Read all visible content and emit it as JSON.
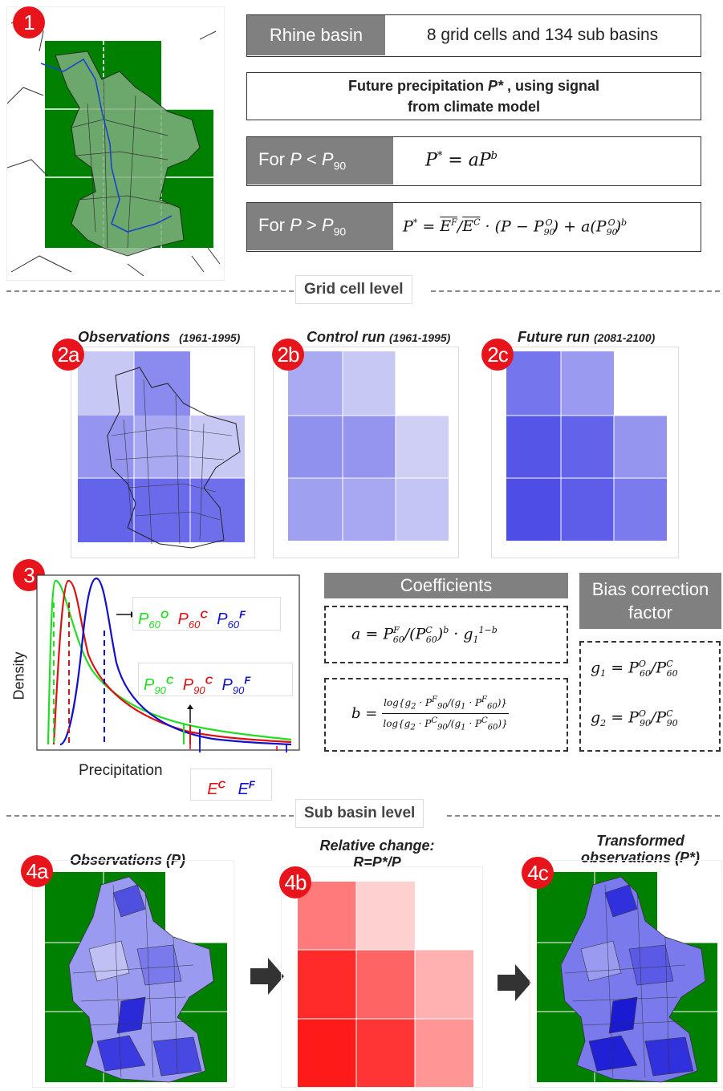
{
  "badges": {
    "b1": "1",
    "b2a": "2a",
    "b2b": "2b",
    "b2c": "2c",
    "b3": "3",
    "b4a": "4a",
    "b4b": "4b",
    "b4c": "4c"
  },
  "header": {
    "rhine_label": "Rhine basin",
    "rhine_desc": "8 grid cells and 134 sub basins",
    "future_line1": "Future  precipitation P* , using signal",
    "future_line2": "from climate model",
    "for_lt": "For P < P90",
    "for_gt": "For P > P90",
    "eq_lt": "P* = aP^b",
    "eq_gt": "P* = E^F/E^C · (P − P^O_90) + a(P^O_90)^b"
  },
  "levels": {
    "grid": "Grid cell level",
    "sub": "Sub basin level"
  },
  "panels2": {
    "obs_title": "Observations",
    "obs_years": "(1961-1995)",
    "ctrl_title": "Control run",
    "ctrl_years": "(1961-1995)",
    "fut_title": "Future run",
    "fut_years": "(2081-2100)"
  },
  "density_chart": {
    "ylabel": "Density",
    "xlabel": "Precipitation",
    "p60_labels": [
      "P60O",
      "P60C",
      "P60F"
    ],
    "p90_labels": [
      "P90C",
      "P90C",
      "P90F"
    ],
    "e_labels": [
      "EC",
      "EF"
    ]
  },
  "coefficients": {
    "title": "Coefficients",
    "eq_a": "a = P^F_60 / (P^C_60)^b · g1^(1−b)",
    "eq_b": "b = log{g2·P^F_90/(g1·P^F_60)} / log{g2·P^C_90/(g1·P^C_60)}"
  },
  "bias": {
    "title_line1": "Bias correction",
    "title_line2": "factor",
    "eq_g1": "g1 = P^O_60 / P^C_60",
    "eq_g2": "g2 = P^O_90 / P^C_90"
  },
  "panels4": {
    "obs_title": "Observations (P)",
    "rel_line1": "Relative change:",
    "rel_line2": "R=P*/P",
    "trans_line1": "Transformed",
    "trans_line2": "observations (P*)"
  },
  "colors": {
    "green": "#008000",
    "red_badge": "#e8141b",
    "gray_label": "#808080",
    "series_O": "#22dd22",
    "series_C": "#dd1111",
    "series_F": "#1111cc"
  }
}
